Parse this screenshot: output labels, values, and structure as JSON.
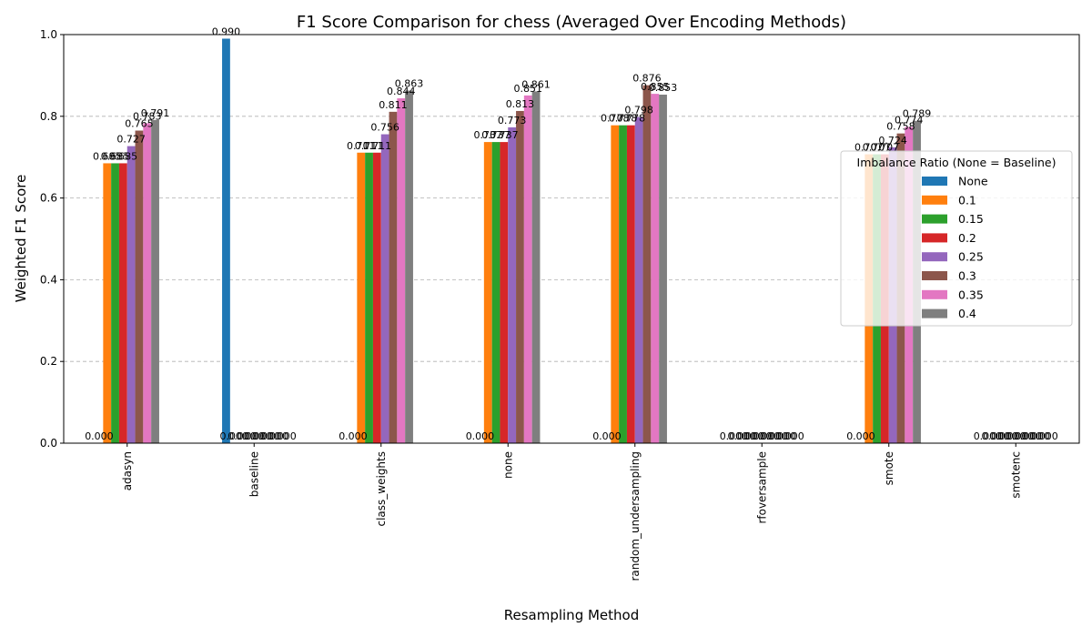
{
  "chart_data": {
    "type": "bar",
    "title": "F1 Score Comparison for chess (Averaged Over Encoding Methods)",
    "xlabel": "Resampling Method",
    "ylabel": "Weighted F1 Score",
    "ylim": [
      0,
      1.0
    ],
    "yticks": [
      "0.0",
      "0.2",
      "0.4",
      "0.6",
      "0.8",
      "1.0"
    ],
    "grid": "y-dashed",
    "legend": {
      "title": "Imbalance Ratio (None = Baseline)",
      "placement": "right"
    },
    "categories": [
      "adasyn",
      "baseline",
      "class_weights",
      "none",
      "random_undersampling",
      "rfoversample",
      "smote",
      "smotenc"
    ],
    "series": [
      {
        "name": "None",
        "color": "#1f77b4",
        "values": [
          0.0,
          0.99,
          0.0,
          0.0,
          0.0,
          0.0,
          0.0,
          0.0
        ],
        "labels": [
          "0.000",
          "0.990",
          "0.000",
          "0.000",
          "0.000",
          "0.000",
          "0.000",
          "0.000"
        ]
      },
      {
        "name": "0.1",
        "color": "#ff7f0e",
        "values": [
          0.685,
          0.0,
          0.711,
          0.737,
          0.778,
          0.0,
          0.707,
          0.0
        ],
        "labels": [
          "0.685",
          "0.000",
          "0.711",
          "0.737",
          "0.778",
          "0.000",
          "0.707",
          "0.000"
        ]
      },
      {
        "name": "0.15",
        "color": "#2ca02c",
        "values": [
          0.685,
          0.0,
          0.711,
          0.737,
          0.778,
          0.0,
          0.707,
          0.0
        ],
        "labels": [
          "0.685",
          "0.000",
          "0.711",
          "0.737",
          "0.778",
          "0.000",
          "0.707",
          "0.000"
        ]
      },
      {
        "name": "0.2",
        "color": "#d62728",
        "values": [
          0.685,
          0.0,
          0.711,
          0.737,
          0.778,
          0.0,
          0.707,
          0.0
        ],
        "labels": [
          "0.685",
          "0.000",
          "0.711",
          "0.737",
          "0.778",
          "0.000",
          "0.707",
          "0.000"
        ]
      },
      {
        "name": "0.25",
        "color": "#9467bd",
        "values": [
          0.727,
          0.0,
          0.756,
          0.773,
          0.798,
          0.0,
          0.724,
          0.0
        ],
        "labels": [
          "0.727",
          "0.000",
          "0.756",
          "0.773",
          "0.798",
          "0.000",
          "0.724",
          "0.000"
        ]
      },
      {
        "name": "0.3",
        "color": "#8c564b",
        "values": [
          0.765,
          0.0,
          0.811,
          0.813,
          0.876,
          0.0,
          0.758,
          0.0
        ],
        "labels": [
          "0.765",
          "0.000",
          "0.811",
          "0.813",
          "0.876",
          "0.000",
          "0.758",
          "0.000"
        ]
      },
      {
        "name": "0.35",
        "color": "#e377c2",
        "values": [
          0.783,
          0.0,
          0.844,
          0.851,
          0.855,
          0.0,
          0.774,
          0.0
        ],
        "labels": [
          "0.783",
          "0.000",
          "0.844",
          "0.851",
          "0.855",
          "0.000",
          "0.774",
          "0.000"
        ]
      },
      {
        "name": "0.4",
        "color": "#7f7f7f",
        "values": [
          0.791,
          0.0,
          0.863,
          0.861,
          0.853,
          0.0,
          0.789,
          0.0
        ],
        "labels": [
          "0.791",
          "0.000",
          "0.863",
          "0.861",
          "0.853",
          "0.000",
          "0.789",
          "0.000"
        ]
      }
    ]
  }
}
